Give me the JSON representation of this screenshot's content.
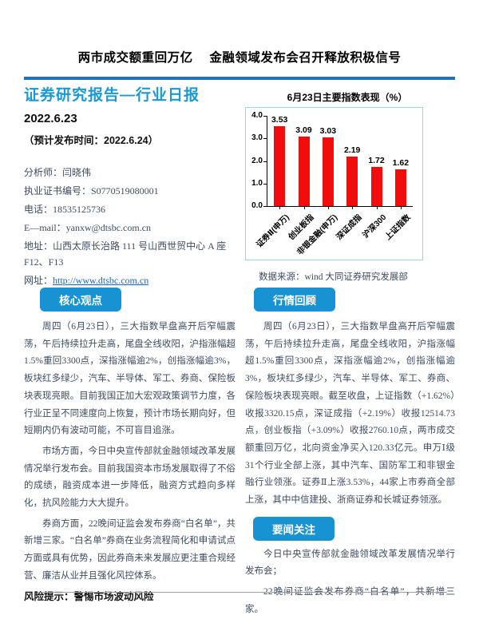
{
  "headline": "两市成交额重回万亿　 金融领域发布会召开释放积极信号",
  "masthead": {
    "report_type": "证券研究报告—行业日报",
    "date": "2022.6.23",
    "expected_release": "（预计发布时间：2022.6.24）"
  },
  "contact": {
    "analyst": "分析师：闫晓伟",
    "license": "执业证书编号：S0770519080001",
    "phone": "电话：18535125736",
    "email": "E—mail：yanxw@dtsbc.com.cn",
    "address": "地址：山西太原长治路 111 号山西世贸中心 A 座 F12、F13",
    "website_label": "网址：",
    "website_url": "http://www.dtsbc.com.cn"
  },
  "chart": {
    "title": "6月23日主要指数表现（%）",
    "source": "数据来源：wind 大同证券研究发展部"
  },
  "chart_data": {
    "type": "bar",
    "title": "6月23日主要指数表现（%）",
    "categories": [
      "证券Ⅱ(申万)",
      "创业板指",
      "非银金融(申万)",
      "深证成指",
      "沪深300",
      "上证指数"
    ],
    "values": [
      3.53,
      3.09,
      3.03,
      2.19,
      1.72,
      1.62
    ],
    "xlabel": "",
    "ylabel": "",
    "ylim": [
      0,
      4
    ],
    "yticks": [
      0.0,
      1.0,
      2.0,
      3.0,
      4.0
    ],
    "bar_color": "#f20d0d",
    "grid": false,
    "legend": false
  },
  "core": {
    "header": "核心观点",
    "paragraphs": [
      "周四（6月23日），三大指数早盘高开后窄幅震荡，午后持续拉升走高，尾盘全线收阳，沪指涨幅超1.5%重回3300点，深指涨幅逾2%，创指涨幅逾3%，板块红多绿少，汽车、半导体、军工、券商、保险板块表现亮眼。目前我国正加大宏观政策调节力度，各行业正呈不同速度向上恢复，预计市场长期向好，但短期内仍有波动可能，不可盲目追涨。",
      "市场方面，今日中央宣传部就金融领域改革发展情况举行发布会。目前我国资本市场发展取得了不俗的成绩，融资成本进一步降低，融资方式趋向多样化，抗风险能力大大提升。",
      "券商方面，22晚间证监会发布券商“白名单”，共新增三家。“白名单”券商在业务流程简化和申请试点方面或具有优势，因此券商未来发展应更注重合规经营、廉洁从业并且强化风控体系。"
    ],
    "risk": "风险提示：警惕市场波动风险"
  },
  "market": {
    "header": "行情回顾",
    "paragraphs": [
      "周四（6月23日），三大指数早盘高开后窄幅震荡，午后持续拉升走高，尾盘全线收阳，沪指涨幅超1.5%重回3300点，深指涨幅逾2%，创指涨幅逾3%，板块红多绿少，汽车、半导体、军工、券商、保险板块表现亮眼。截至收盘，上证指数（+1.62%）收报3320.15点，深证成指（+2.19%）收报12514.73点，创业板指（+3.09%）收报2760.10点，两市成交额重回万亿，北向资金净买入120.33亿元。申万Ⅰ级31个行业全部上涨，其中汽车、国防军工和非银金融行业领涨。证券Ⅱ上涨3.53%，44家上市券商全部上涨，其中中信建投、浙商证券和长城证券领涨。"
    ]
  },
  "news": {
    "header": "要闻关注",
    "paragraphs": [
      "今日中央宣传部就金融领域改革发展情况举行发布会；",
      "22晚间证监会发布券商“白名单”，共新增三家。"
    ]
  },
  "colors": {
    "accent_blue": "#1793d3",
    "title_blue": "#189ad6",
    "rule_blue": "#2173b9",
    "bar_red": "#f20d0d",
    "link_blue": "#1866c8",
    "chart_border": "#8fd9f2"
  }
}
